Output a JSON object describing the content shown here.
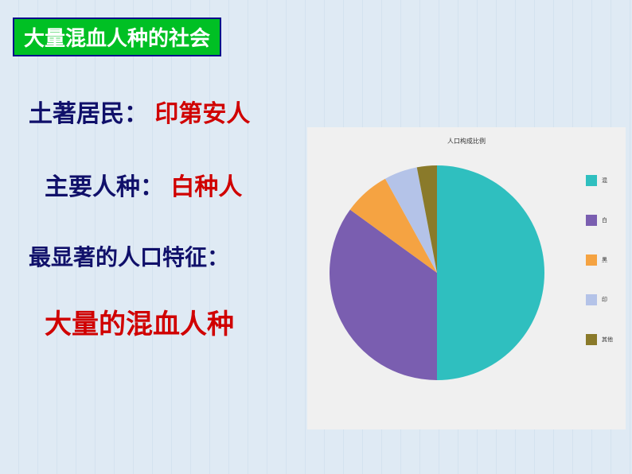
{
  "title": "大量混血人种的社会",
  "lines": {
    "indigenous_label": "土著居民：",
    "indigenous_value": "印第安人",
    "main_race_label": "主要人种：",
    "main_race_value": "白种人",
    "feature_label": "最显著的人口特征：",
    "feature_value": "大量的混血人种"
  },
  "chart": {
    "type": "pie",
    "title": "人口构成比例",
    "background_color": "#f0f0f0",
    "radius": 135,
    "slices": [
      {
        "label": "混",
        "value": 50,
        "color": "#2fbfbf"
      },
      {
        "label": "白",
        "value": 35,
        "color": "#7a5eb0"
      },
      {
        "label": "黑",
        "value": 7,
        "color": "#f5a342"
      },
      {
        "label": "印",
        "value": 5,
        "color": "#b4c3e8"
      },
      {
        "label": "其他",
        "value": 3,
        "color": "#8a7a2a"
      }
    ],
    "start_angle_deg": -90
  },
  "colors": {
    "page_bg": "#dfeaf4",
    "title_bg": "#00c024",
    "title_border": "#0a0a8a",
    "title_text": "#ffffff",
    "label_text": "#10106a",
    "value_text": "#d00000"
  }
}
